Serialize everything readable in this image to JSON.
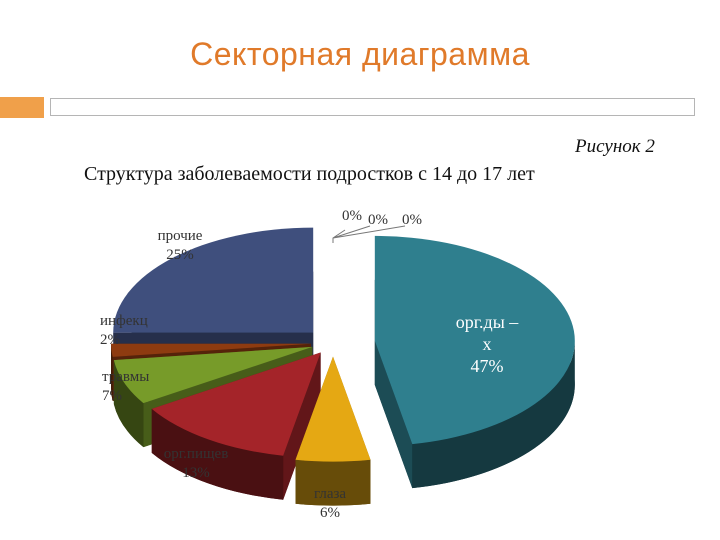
{
  "header": {
    "title": "Секторная диаграмма"
  },
  "figure": {
    "label": "Рисунок 2"
  },
  "chart_data": {
    "type": "pie",
    "title": "Структура заболеваемости подростков с 14 до 17 лет",
    "legend": "none",
    "slices": [
      {
        "name": "орг.ды­х",
        "label": "орг.ды –\nх\n47%",
        "value": 47,
        "color": "#2f7f8e"
      },
      {
        "name": "глаза",
        "label": "глаза\n6%",
        "value": 6,
        "color": "#e5a813"
      },
      {
        "name": "орг.пищев",
        "label": "орг.пищев\n13%",
        "value": 13,
        "color": "#a42429"
      },
      {
        "name": "травмы",
        "label": "травмы\n7%",
        "value": 7,
        "color": "#779b29"
      },
      {
        "name": "инфекц",
        "label": "инфекц\n2%",
        "value": 2,
        "color": "#8e3b10"
      },
      {
        "name": "прочие",
        "label": "прочие\n25%",
        "value": 25,
        "color": "#3f4f7d"
      },
      {
        "name": "",
        "label": "0%",
        "value": 0,
        "color": "#ffffff"
      },
      {
        "name": "",
        "label": "0%",
        "value": 0,
        "color": "#ffffff"
      },
      {
        "name": "",
        "label": "0%",
        "value": 0,
        "color": "#ffffff"
      }
    ]
  }
}
